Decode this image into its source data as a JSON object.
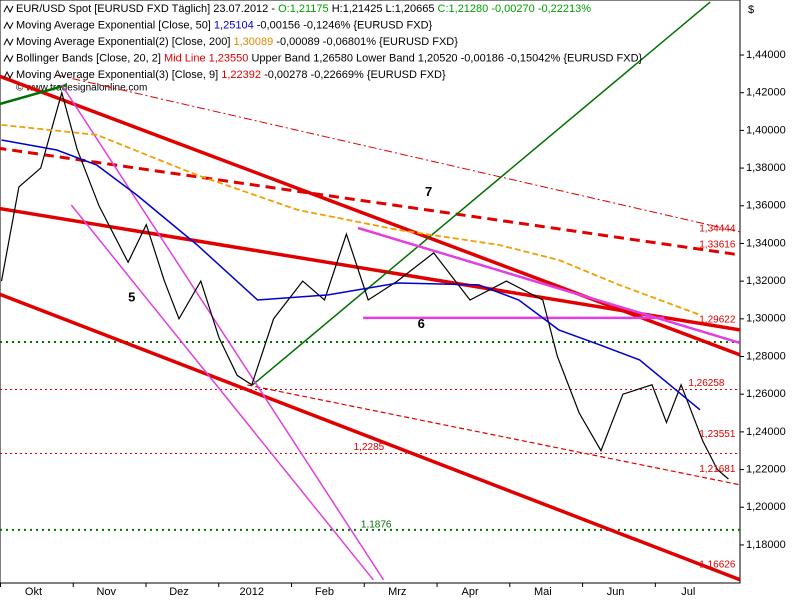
{
  "chart_data": {
    "type": "line",
    "currency_mark": "$",
    "copyright": "© www.tradesignalonline.com",
    "legend": [
      [
        {
          "text": "EUR/USD Spot [EURUSD FXD  Täglich] 23.07.2012 - ",
          "color": "#000000"
        },
        {
          "text": "O:1,21175",
          "color": "#00a000"
        },
        {
          "text": " H:1,21425 L:1,20665 ",
          "color": "#000000"
        },
        {
          "text": "C:1,21280 -0,00270 -0,22213%",
          "color": "#00a000"
        }
      ],
      [
        {
          "text": "Moving Average Exponential [Close, 50] ",
          "color": "#000000"
        },
        {
          "text": "1,25104",
          "color": "#0000cc"
        },
        {
          "text": " -0,00156 -0,1246% {EURUSD FXD}",
          "color": "#000000"
        }
      ],
      [
        {
          "text": "Moving Average Exponential(2) [Close, 200] ",
          "color": "#000000"
        },
        {
          "text": "1,30089",
          "color": "#e08a00"
        },
        {
          "text": " -0,00089 -0,06801% {EURUSD FXD}",
          "color": "#000000"
        }
      ],
      [
        {
          "text": "Bollinger Bands [Close, 20, 2] ",
          "color": "#000000"
        },
        {
          "text": "Mid Line 1,23550",
          "color": "#e00000"
        },
        {
          "text": " Upper Band 1,26580 Lower Band 1,20520 -0,00186 -0,15042% {EURUSD FXD}",
          "color": "#000000"
        }
      ],
      [
        {
          "text": "Moving Average Exponential(3) [Close, 9] ",
          "color": "#000000"
        },
        {
          "text": "1,22392",
          "color": "#e00000"
        },
        {
          "text": " -0,00278 -0,22669% {EURUSD FXD}",
          "color": "#000000"
        }
      ]
    ],
    "xlim": [
      -0.46,
      9.71
    ],
    "xticks": [
      {
        "value": 0,
        "label": "Okt"
      },
      {
        "value": 1,
        "label": "Nov"
      },
      {
        "value": 2,
        "label": "Dez"
      },
      {
        "value": 3,
        "label": "2012"
      },
      {
        "value": 4,
        "label": "Feb"
      },
      {
        "value": 5,
        "label": "Mrz"
      },
      {
        "value": 6,
        "label": "Apr"
      },
      {
        "value": 7,
        "label": "Mai"
      },
      {
        "value": 8,
        "label": "Jun"
      },
      {
        "value": 9,
        "label": "Jul"
      }
    ],
    "ylim": [
      1.1598,
      1.4692
    ],
    "yticks": [
      {
        "value": 1.18,
        "label": "1,18000"
      },
      {
        "value": 1.2,
        "label": "1,20000"
      },
      {
        "value": 1.22,
        "label": "1,22000"
      },
      {
        "value": 1.24,
        "label": "1,24000"
      },
      {
        "value": 1.26,
        "label": "1,26000"
      },
      {
        "value": 1.28,
        "label": "1,28000"
      },
      {
        "value": 1.3,
        "label": "1,30000"
      },
      {
        "value": 1.32,
        "label": "1,32000"
      },
      {
        "value": 1.34,
        "label": "1,34000"
      },
      {
        "value": 1.36,
        "label": "1,36000"
      },
      {
        "value": 1.38,
        "label": "1,38000"
      },
      {
        "value": 1.4,
        "label": "1,40000"
      },
      {
        "value": 1.42,
        "label": "1,42000"
      },
      {
        "value": 1.44,
        "label": "1,44000"
      }
    ],
    "series": [
      {
        "name": "EUR/USD",
        "color": "#000000",
        "width": 1.2,
        "dash": "none",
        "x": [
          -0.44,
          -0.2,
          0.1,
          0.39,
          0.6,
          0.9,
          1.3,
          1.55,
          1.8,
          2.0,
          2.3,
          2.55,
          2.8,
          3.0,
          3.3,
          3.7,
          4.0,
          4.3,
          4.6,
          5.0,
          5.5,
          6.0,
          6.5,
          7.0,
          7.2,
          7.5,
          7.8,
          8.1,
          8.5,
          8.7,
          8.9,
          9.2,
          9.4,
          9.55
        ],
        "values": [
          1.32,
          1.37,
          1.38,
          1.42,
          1.39,
          1.36,
          1.33,
          1.35,
          1.32,
          1.3,
          1.32,
          1.29,
          1.27,
          1.265,
          1.3,
          1.32,
          1.31,
          1.345,
          1.31,
          1.32,
          1.335,
          1.31,
          1.32,
          1.31,
          1.28,
          1.25,
          1.23,
          1.26,
          1.265,
          1.245,
          1.265,
          1.235,
          1.22,
          1.215
        ]
      },
      {
        "name": "EMA 50",
        "color": "#0000cc",
        "width": 1.5,
        "dash": "none",
        "x": [
          -0.44,
          0.32,
          0.87,
          1.42,
          2.25,
          3.08,
          4.05,
          5.01,
          6.12,
          6.67,
          7.22,
          7.78,
          8.33,
          9.16
        ],
        "values": [
          1.3949,
          1.3896,
          1.3816,
          1.3657,
          1.3392,
          1.31,
          1.3127,
          1.319,
          1.318,
          1.31,
          1.2941,
          1.2862,
          1.2782,
          1.2517
        ]
      },
      {
        "name": "EMA 200",
        "color": "#f0a000",
        "width": 1.8,
        "dash": "6 3",
        "x": [
          -0.44,
          0.87,
          2.25,
          3.63,
          5.01,
          6.4,
          7.22,
          8.05,
          9.16
        ],
        "values": [
          1.4029,
          1.3976,
          1.3763,
          1.3578,
          1.3472,
          1.3392,
          1.3312,
          1.318,
          1.3021
        ]
      }
    ],
    "trendlines": [
      {
        "color": "#e00000",
        "width": 3.5,
        "dash": "none",
        "x": [
          -0.51,
          9.71
        ],
        "y": [
          1.4294,
          1.2809
        ]
      },
      {
        "color": "#e00000",
        "width": 3.5,
        "dash": "none",
        "x": [
          -0.51,
          9.71
        ],
        "y": [
          1.3588,
          1.2941
        ]
      },
      {
        "color": "#e00000",
        "width": 3.5,
        "dash": "none",
        "x": [
          -0.51,
          9.71
        ],
        "y": [
          1.3137,
          1.1615
        ]
      },
      {
        "color": "#e00000",
        "width": 3,
        "dash": "10 6",
        "x": [
          -0.51,
          9.71
        ],
        "y": [
          1.3907,
          1.3339
        ]
      },
      {
        "color": "#e00000",
        "width": 1,
        "dash": "8 3 2 3",
        "x": [
          0.32,
          9.71
        ],
        "y": [
          1.4294,
          1.3461
        ]
      },
      {
        "color": "#e00000",
        "width": 1.2,
        "dash": "5 3",
        "x": [
          2.94,
          9.71
        ],
        "y": [
          1.2649,
          1.2119
        ]
      },
      {
        "color": "#007000",
        "width": 1.5,
        "dash": "none",
        "x": [
          3.01,
          9.3
        ],
        "y": [
          1.2649,
          1.4681
        ]
      },
      {
        "color": "#007000",
        "width": 2.5,
        "dash": "none",
        "x": [
          -0.51,
          0.46
        ],
        "y": [
          1.4135,
          1.4241
        ]
      },
      {
        "color": "#e040e0",
        "width": 1.5,
        "dash": "none",
        "x": [
          0.39,
          4.81
        ],
        "y": [
          1.4241,
          1.1615
        ]
      },
      {
        "color": "#e040e0",
        "width": 1.5,
        "dash": "none",
        "x": [
          0.52,
          4.67
        ],
        "y": [
          1.3604,
          1.1615
        ]
      },
      {
        "color": "#e040e0",
        "width": 2.5,
        "dash": "none",
        "x": [
          4.46,
          9.71
        ],
        "y": [
          1.3482,
          1.2872
        ]
      },
      {
        "color": "#e040e0",
        "width": 2.5,
        "dash": "none",
        "x": [
          4.53,
          8.67
        ],
        "y": [
          1.3005,
          1.3005
        ]
      }
    ],
    "levels": [
      {
        "value": 1.2877,
        "color": "#007000",
        "dash": "2 4",
        "width": 2
      },
      {
        "value": 1.188,
        "color": "#007000",
        "dash": "2 4",
        "width": 2
      },
      {
        "value": 1.2625,
        "color": "#e00000",
        "dash": "2 3",
        "width": 1
      },
      {
        "value": 1.2285,
        "color": "#e00000",
        "dash": "2 3",
        "width": 1
      }
    ],
    "price_labels": [
      {
        "value": 1.34444,
        "label": "1,34444",
        "color": "#e00000",
        "x": 9.15
      },
      {
        "value": 1.33616,
        "label": "1,33616",
        "color": "#e00000",
        "x": 9.15
      },
      {
        "value": 1.29622,
        "label": "1,29622",
        "color": "#e00000",
        "x": 9.15
      },
      {
        "value": 1.26258,
        "label": "1,26258",
        "color": "#e00000",
        "x": 9.0
      },
      {
        "value": 1.23551,
        "label": "1,23551",
        "color": "#e00000",
        "x": 9.15
      },
      {
        "value": 1.21681,
        "label": "1,21681",
        "color": "#e00000",
        "x": 9.15
      },
      {
        "value": 1.16626,
        "label": "1,16626",
        "color": "#e00000",
        "x": 9.15
      },
      {
        "value": 1.2285,
        "label": "1,2285",
        "color": "#e00000",
        "x": 4.4
      },
      {
        "value": 1.1876,
        "label": "1,1876",
        "color": "#007000",
        "x": 4.5
      }
    ],
    "wave_labels": [
      {
        "label": "5",
        "x": 1.35,
        "y": 1.311
      },
      {
        "label": "6",
        "x": 5.33,
        "y": 1.297
      },
      {
        "label": "7",
        "x": 5.43,
        "y": 1.367
      }
    ]
  }
}
